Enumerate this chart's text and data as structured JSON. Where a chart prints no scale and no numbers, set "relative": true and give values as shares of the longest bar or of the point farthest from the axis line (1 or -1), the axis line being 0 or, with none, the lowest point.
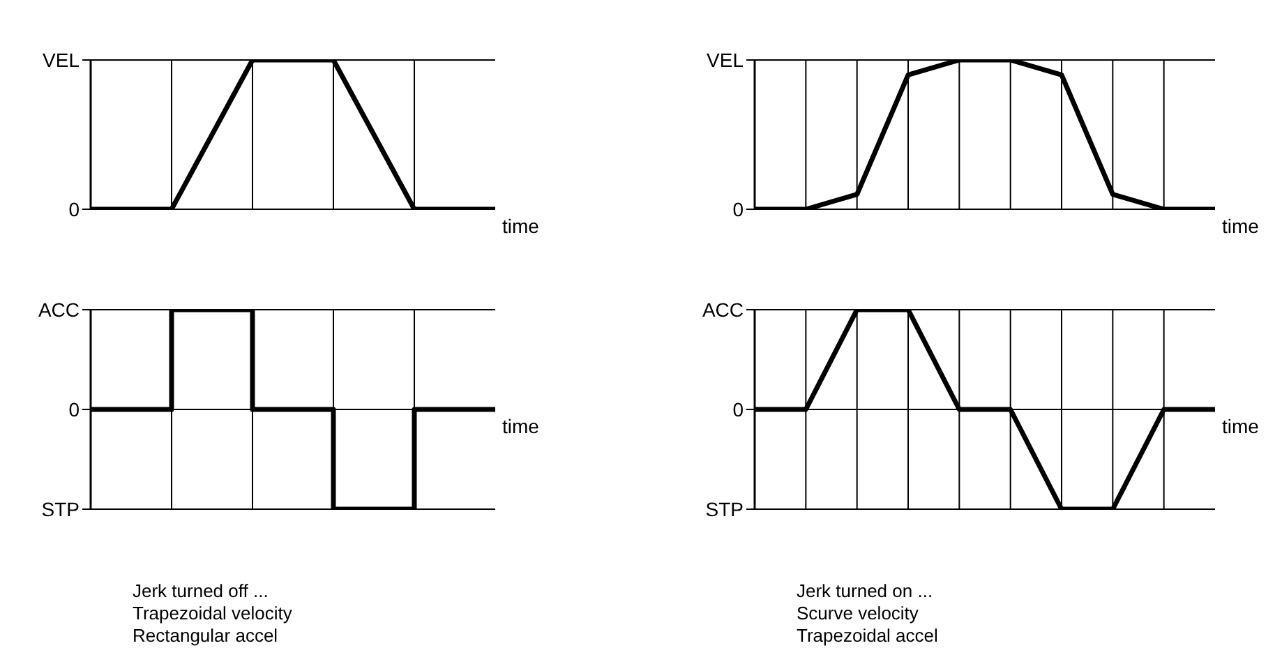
{
  "chart_data": [
    {
      "type": "line",
      "relative": true,
      "xlabel": "time",
      "categories": [
        null,
        null,
        null,
        null,
        null,
        null
      ],
      "grid": "x",
      "line_style": "solid",
      "marker": "none",
      "ref_lines": [
        {
          "axis": "y",
          "value": 1,
          "label": "VEL"
        },
        {
          "axis": "y",
          "value": 0,
          "label": "0"
        }
      ],
      "series": [
        {
          "color": "#000000",
          "values": [
            0,
            0,
            1,
            1,
            0,
            0
          ]
        }
      ]
    },
    {
      "type": "step",
      "relative": true,
      "xlabel": "time",
      "categories": [
        null,
        null,
        null,
        null,
        null,
        null
      ],
      "grid": "x",
      "line_style": "solid",
      "marker": "none",
      "ref_lines": [
        {
          "axis": "y",
          "value": 1,
          "label": "ACC"
        },
        {
          "axis": "y",
          "value": 0,
          "label": "0"
        },
        {
          "axis": "y",
          "value": -1,
          "label": "STP"
        }
      ],
      "series": [
        {
          "color": "#000000",
          "values": [
            0,
            1,
            0,
            -1,
            0,
            0
          ]
        }
      ],
      "annotations": [
        "Jerk turned off ...",
        "Trapezoidal velocity",
        "Rectangular accel"
      ]
    },
    {
      "type": "line",
      "relative": true,
      "xlabel": "time",
      "categories": [
        null,
        null,
        null,
        null,
        null,
        null,
        null,
        null,
        null,
        null
      ],
      "grid": "x",
      "line_style": "solid",
      "marker": "none",
      "ref_lines": [
        {
          "axis": "y",
          "value": 1,
          "label": "VEL"
        },
        {
          "axis": "y",
          "value": 0,
          "label": "0"
        }
      ],
      "series": [
        {
          "color": "#000000",
          "values": [
            0,
            0,
            0.1,
            0.9,
            1,
            1,
            0.9,
            0.1,
            0,
            0
          ]
        }
      ]
    },
    {
      "type": "line",
      "relative": true,
      "xlabel": "time",
      "categories": [
        null,
        null,
        null,
        null,
        null,
        null,
        null,
        null,
        null,
        null
      ],
      "grid": "x",
      "line_style": "solid",
      "marker": "none",
      "ref_lines": [
        {
          "axis": "y",
          "value": 1,
          "label": "ACC"
        },
        {
          "axis": "y",
          "value": 0,
          "label": "0"
        },
        {
          "axis": "y",
          "value": -1,
          "label": "STP"
        }
      ],
      "series": [
        {
          "color": "#000000",
          "values": [
            0,
            0,
            1,
            1,
            0,
            0,
            -1,
            -1,
            0,
            0
          ]
        }
      ],
      "annotations": [
        "Jerk turned on ...",
        "Scurve velocity",
        "Trapezoidal accel"
      ]
    }
  ]
}
